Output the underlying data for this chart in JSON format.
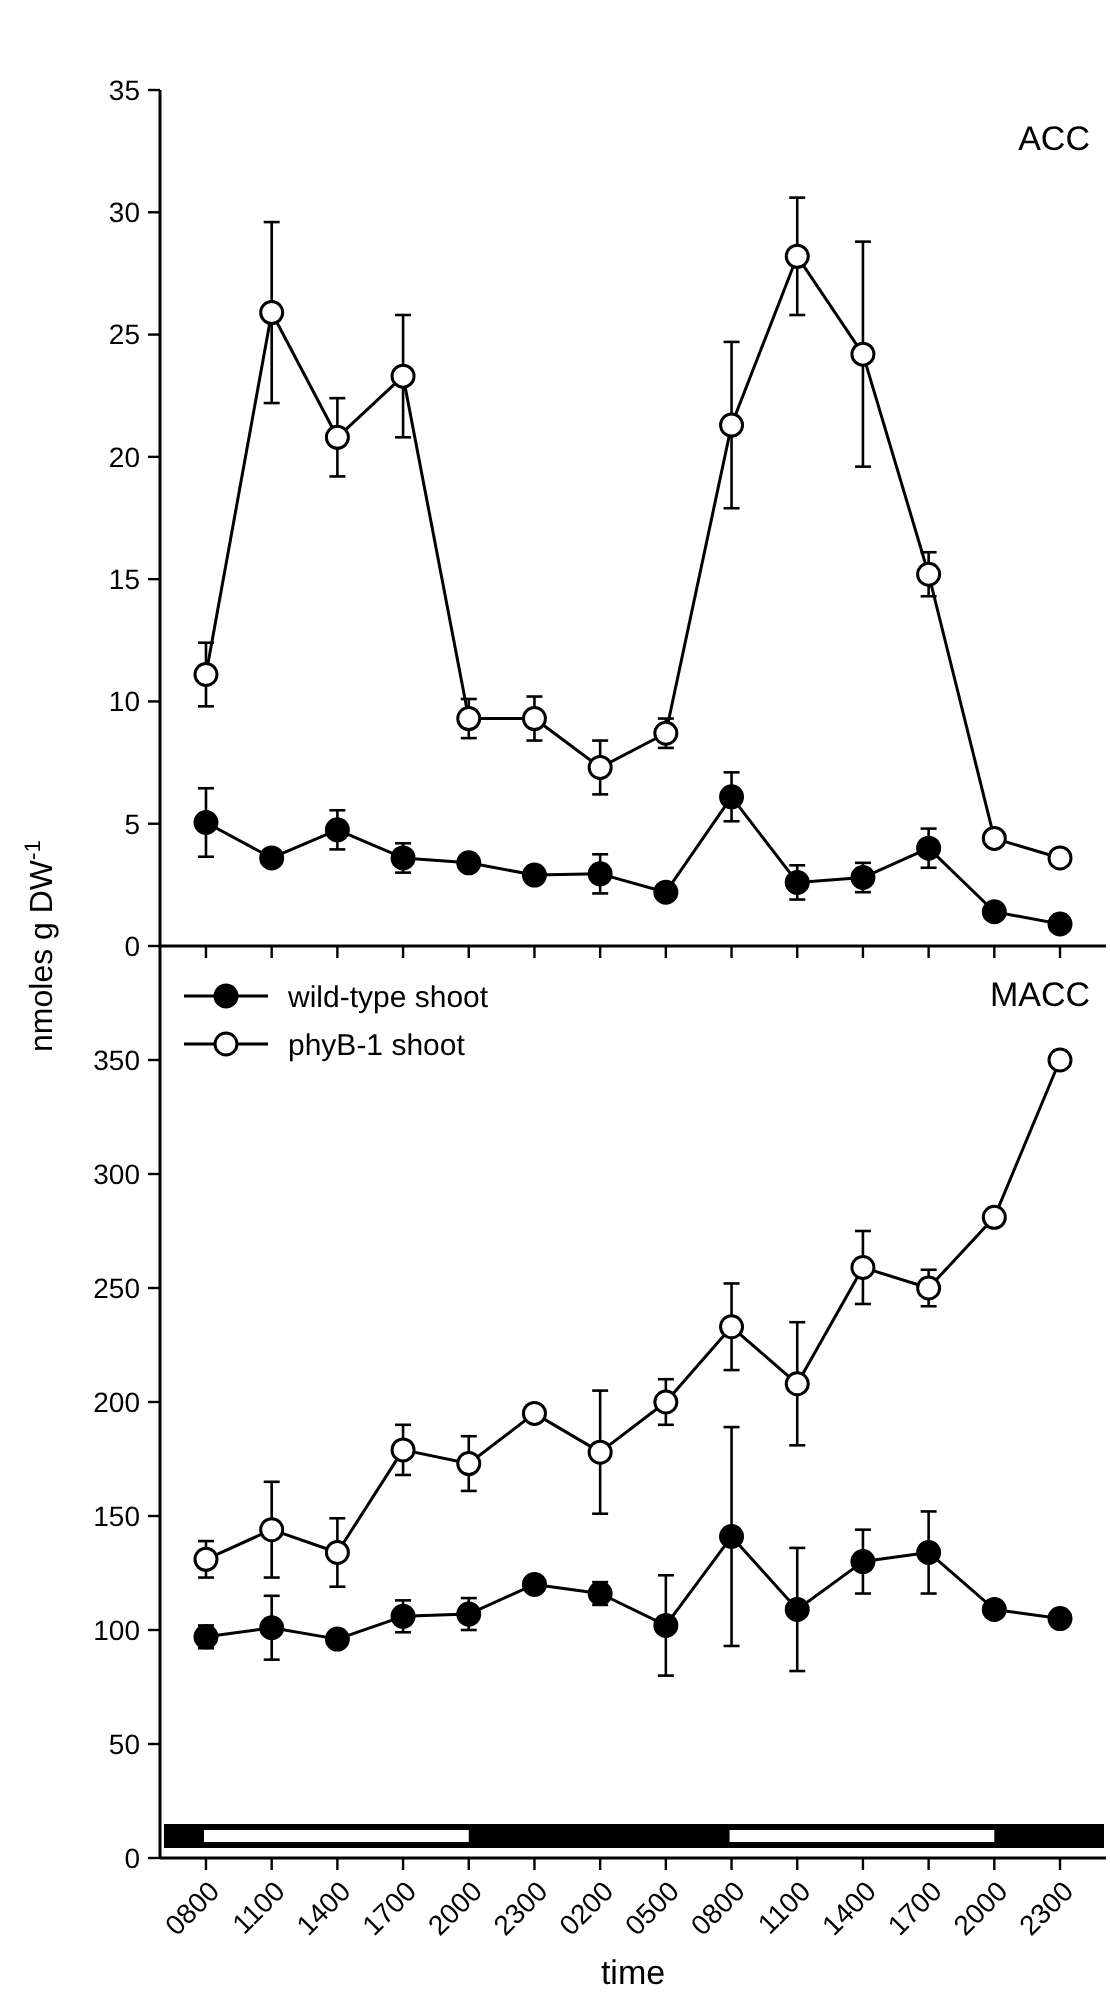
{
  "chart_data": [
    {
      "type": "line",
      "title": "ACC",
      "ylabel": "nmoles g DW$^{-1}$",
      "categories": [
        "0800",
        "1100",
        "1400",
        "1700",
        "2000",
        "2300",
        "0200",
        "0500",
        "0800",
        "1100",
        "1400",
        "1700",
        "2000",
        "2300"
      ],
      "ylim": [
        0,
        35
      ],
      "yticks": [
        0,
        5,
        10,
        15,
        20,
        25,
        30,
        35
      ],
      "marker": "circle",
      "tick_labels": "y",
      "grid": false,
      "legend": false,
      "series": [
        {
          "color": "#000000",
          "values": [
            5.05,
            3.6,
            4.75,
            3.6,
            3.4,
            2.9,
            2.95,
            2.2,
            6.1,
            2.6,
            2.8,
            4.0,
            1.4,
            0.9
          ],
          "errors": [
            1.4,
            null,
            0.8,
            0.6,
            null,
            null,
            0.8,
            null,
            1.0,
            0.7,
            0.6,
            0.8,
            null,
            null
          ]
        },
        {
          "color": "#000000",
          "values": [
            11.1,
            25.9,
            20.8,
            23.3,
            9.3,
            9.3,
            7.3,
            8.7,
            21.3,
            28.2,
            24.2,
            15.2,
            4.4,
            3.6
          ],
          "errors": [
            1.3,
            3.7,
            1.6,
            2.5,
            0.8,
            0.9,
            1.1,
            0.6,
            3.4,
            2.4,
            4.6,
            0.9,
            null,
            0.3
          ]
        }
      ]
    },
    {
      "type": "line",
      "title": "MACC",
      "xlabel": "time",
      "categories": [
        "0800",
        "1100",
        "1400",
        "1700",
        "2000",
        "2300",
        "0200",
        "0500",
        "0800",
        "1100",
        "1400",
        "1700",
        "2000",
        "2300"
      ],
      "ylim": [
        0,
        400
      ],
      "yticks": [
        0,
        50,
        100,
        150,
        200,
        250,
        300,
        350
      ],
      "marker": "circle",
      "grid": false,
      "legend": "top left",
      "series": [
        {
          "name": "wild-type shoot",
          "color": "#000000",
          "values": [
            97,
            101,
            96,
            106,
            107,
            120,
            116,
            102,
            141,
            109,
            130,
            134,
            109,
            105
          ],
          "errors": [
            5,
            14,
            null,
            7,
            7,
            3,
            5,
            22,
            48,
            27,
            14,
            18,
            null,
            3
          ]
        },
        {
          "name": "phyB-1 shoot",
          "color": "#000000",
          "values": [
            131,
            144,
            134,
            179,
            173,
            195,
            178,
            200,
            233,
            208,
            259,
            250,
            281,
            350
          ],
          "errors": [
            8,
            21,
            15,
            11,
            12,
            null,
            27,
            10,
            19,
            27,
            16,
            8,
            null,
            3
          ]
        }
      ]
    }
  ]
}
